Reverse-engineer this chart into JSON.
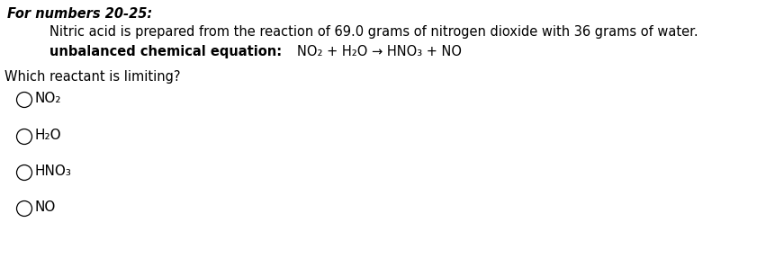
{
  "bg_color": "#ffffff",
  "fig_width": 8.61,
  "fig_height": 2.87,
  "dpi": 100,
  "title": "For numbers 20-25:",
  "line1": "Nitric acid is prepared from the reaction of 69.0 grams of nitrogen dioxide with 36 grams of water.",
  "line2_bold": "unbalanced chemical equation:",
  "line2_equation": "NO₂ + H₂O → HNO₃ + NO",
  "question": "Which reactant is limiting?",
  "options": [
    "NO₂",
    "H₂O",
    "HNO₃",
    "NO"
  ],
  "text_color": "#000000",
  "font_size_title": 10.5,
  "font_size_body": 10.5,
  "font_size_options": 11
}
